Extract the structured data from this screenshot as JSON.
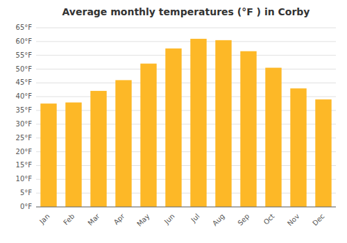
{
  "chart_data": {
    "type": "bar",
    "title": "Average monthly temperatures (°F ) in Corby",
    "categories": [
      "Jan",
      "Feb",
      "Mar",
      "Apr",
      "May",
      "Jun",
      "Jul",
      "Aug",
      "Sep",
      "Oct",
      "Nov",
      "Dec"
    ],
    "values": [
      37.5,
      37.9,
      42.1,
      46.0,
      52.0,
      57.5,
      61.0,
      60.5,
      56.5,
      50.5,
      43.0,
      39.0
    ],
    "color": "#FDB827",
    "ylim": [
      0,
      65
    ],
    "yticks": [
      {
        "value": 0,
        "label": "0°F"
      },
      {
        "value": 5,
        "label": "5°F"
      },
      {
        "value": 10,
        "label": "10°F"
      },
      {
        "value": 15,
        "label": "15°F"
      },
      {
        "value": 20,
        "label": "20°F"
      },
      {
        "value": 25,
        "label": "25°F"
      },
      {
        "value": 30,
        "label": "30°F"
      },
      {
        "value": 35,
        "label": "35°F"
      },
      {
        "value": 40,
        "label": "40°F"
      },
      {
        "value": 45,
        "label": "45°F"
      },
      {
        "value": 50,
        "label": "50°F"
      },
      {
        "value": 55,
        "label": "55°F"
      },
      {
        "value": 60,
        "label": "60°F"
      },
      {
        "value": 65,
        "label": "65°F"
      }
    ],
    "grid": true
  }
}
